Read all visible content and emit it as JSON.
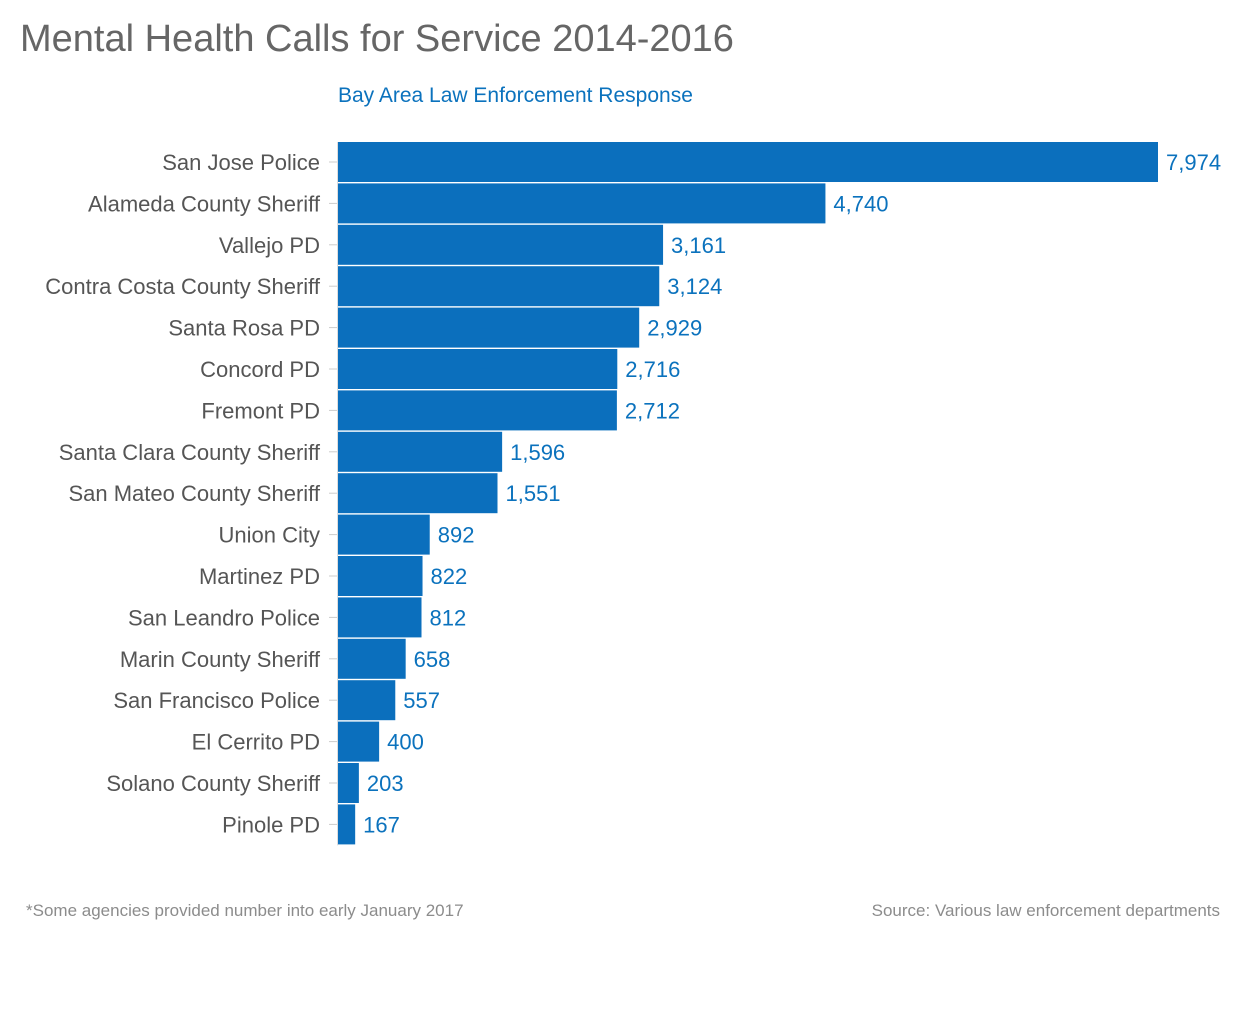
{
  "chart_data": {
    "type": "bar",
    "orientation": "horizontal",
    "title": "Mental Health Calls for Service 2014-2016",
    "subtitle": "Bay Area Law Enforcement Response",
    "categories": [
      "San Jose Police",
      "Alameda County Sheriff",
      "Vallejo PD",
      "Contra Costa County Sheriff",
      "Santa Rosa PD",
      "Concord PD",
      "Fremont PD",
      "Santa Clara County Sheriff",
      "San Mateo County Sheriff",
      "Union City",
      "Martinez PD",
      "San Leandro Police",
      "Marin County Sheriff",
      "San Francisco Police",
      "El Cerrito PD",
      "Solano County Sheriff",
      "Pinole PD"
    ],
    "values": [
      7974,
      4740,
      3161,
      3124,
      2929,
      2716,
      2712,
      1596,
      1551,
      892,
      822,
      812,
      658,
      557,
      400,
      203,
      167
    ],
    "value_labels": [
      "7,974",
      "4,740",
      "3,161",
      "3,124",
      "2,929",
      "2,716",
      "2,712",
      "1,596",
      "1,551",
      "892",
      "822",
      "812",
      "658",
      "557",
      "400",
      "203",
      "167"
    ],
    "xlim": [
      0,
      7974
    ],
    "grid": false,
    "legend": "none",
    "bar_color": "#0b6fbd",
    "label_color": "#0b72bd",
    "category_color": "#555555"
  },
  "footnote": "*Some agencies provided number into early January 2017",
  "source": "Source: Various law enforcement departments"
}
